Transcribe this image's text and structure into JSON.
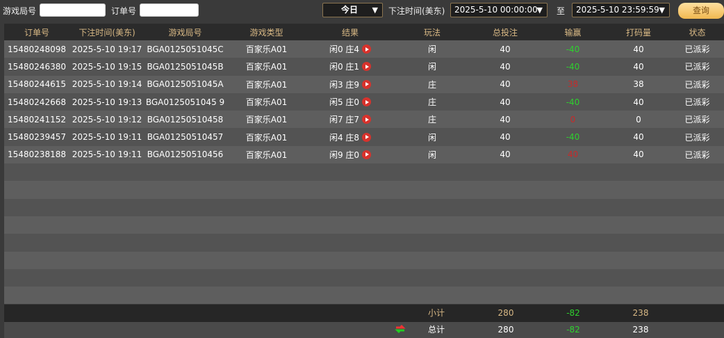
{
  "toolbar": {
    "game_round_label": "游戏局号",
    "game_round_value": "",
    "order_label": "订单号",
    "order_value": "",
    "range_select": "今日",
    "time_label": "下注时间(美东)",
    "start_time": "2025-5-10 00:00:00",
    "to_label": "至",
    "end_time": "2025-5-10 23:59:59",
    "query_button": "查询"
  },
  "table": {
    "headers": [
      "订单号",
      "下注时间(美东)",
      "游戏局号",
      "游戏类型",
      "结果",
      "玩法",
      "总投注",
      "输赢",
      "打码量",
      "状态"
    ],
    "rows": [
      [
        "15480248098",
        "2025-5-10 19:17",
        "BGA0125051045C",
        "百家乐A01",
        "闲0 庄4",
        "闲",
        "40",
        "-40",
        "40",
        "已派彩"
      ],
      [
        "15480246380",
        "2025-5-10 19:15",
        "BGA0125051045B",
        "百家乐A01",
        "闲0 庄1",
        "闲",
        "40",
        "-40",
        "40",
        "已派彩"
      ],
      [
        "15480244615",
        "2025-5-10 19:14",
        "BGA0125051045A",
        "百家乐A01",
        "闲3 庄9",
        "庄",
        "40",
        "38",
        "38",
        "已派彩"
      ],
      [
        "15480242668",
        "2025-5-10 19:13",
        "BGA0125051045 9",
        "百家乐A01",
        "闲5 庄0",
        "庄",
        "40",
        "-40",
        "40",
        "已派彩"
      ],
      [
        "15480241152",
        "2025-5-10 19:12",
        "BGA01250510458",
        "百家乐A01",
        "闲7 庄7",
        "庄",
        "40",
        "0",
        "0",
        "已派彩"
      ],
      [
        "15480239457",
        "2025-5-10 19:11",
        "BGA01250510457",
        "百家乐A01",
        "闲4 庄8",
        "闲",
        "40",
        "-40",
        "40",
        "已派彩"
      ],
      [
        "15480238188",
        "2025-5-10 19:11",
        "BGA01250510456",
        "百家乐A01",
        "闲9 庄0",
        "闲",
        "40",
        "40",
        "40",
        "已派彩"
      ]
    ],
    "win_loss_colors": [
      "green",
      "green",
      "red",
      "green",
      "red",
      "green",
      "red"
    ]
  },
  "subtotal": {
    "label": "小计",
    "total_bet": "280",
    "win_loss": "-82",
    "turnover": "238"
  },
  "total": {
    "label": "总计",
    "total_bet": "280",
    "win_loss": "-82",
    "turnover": "238"
  },
  "colors": {
    "accent": "#d9b985",
    "win": "#2ed12e",
    "loss": "#c72a2a",
    "button": "#f0b850"
  }
}
